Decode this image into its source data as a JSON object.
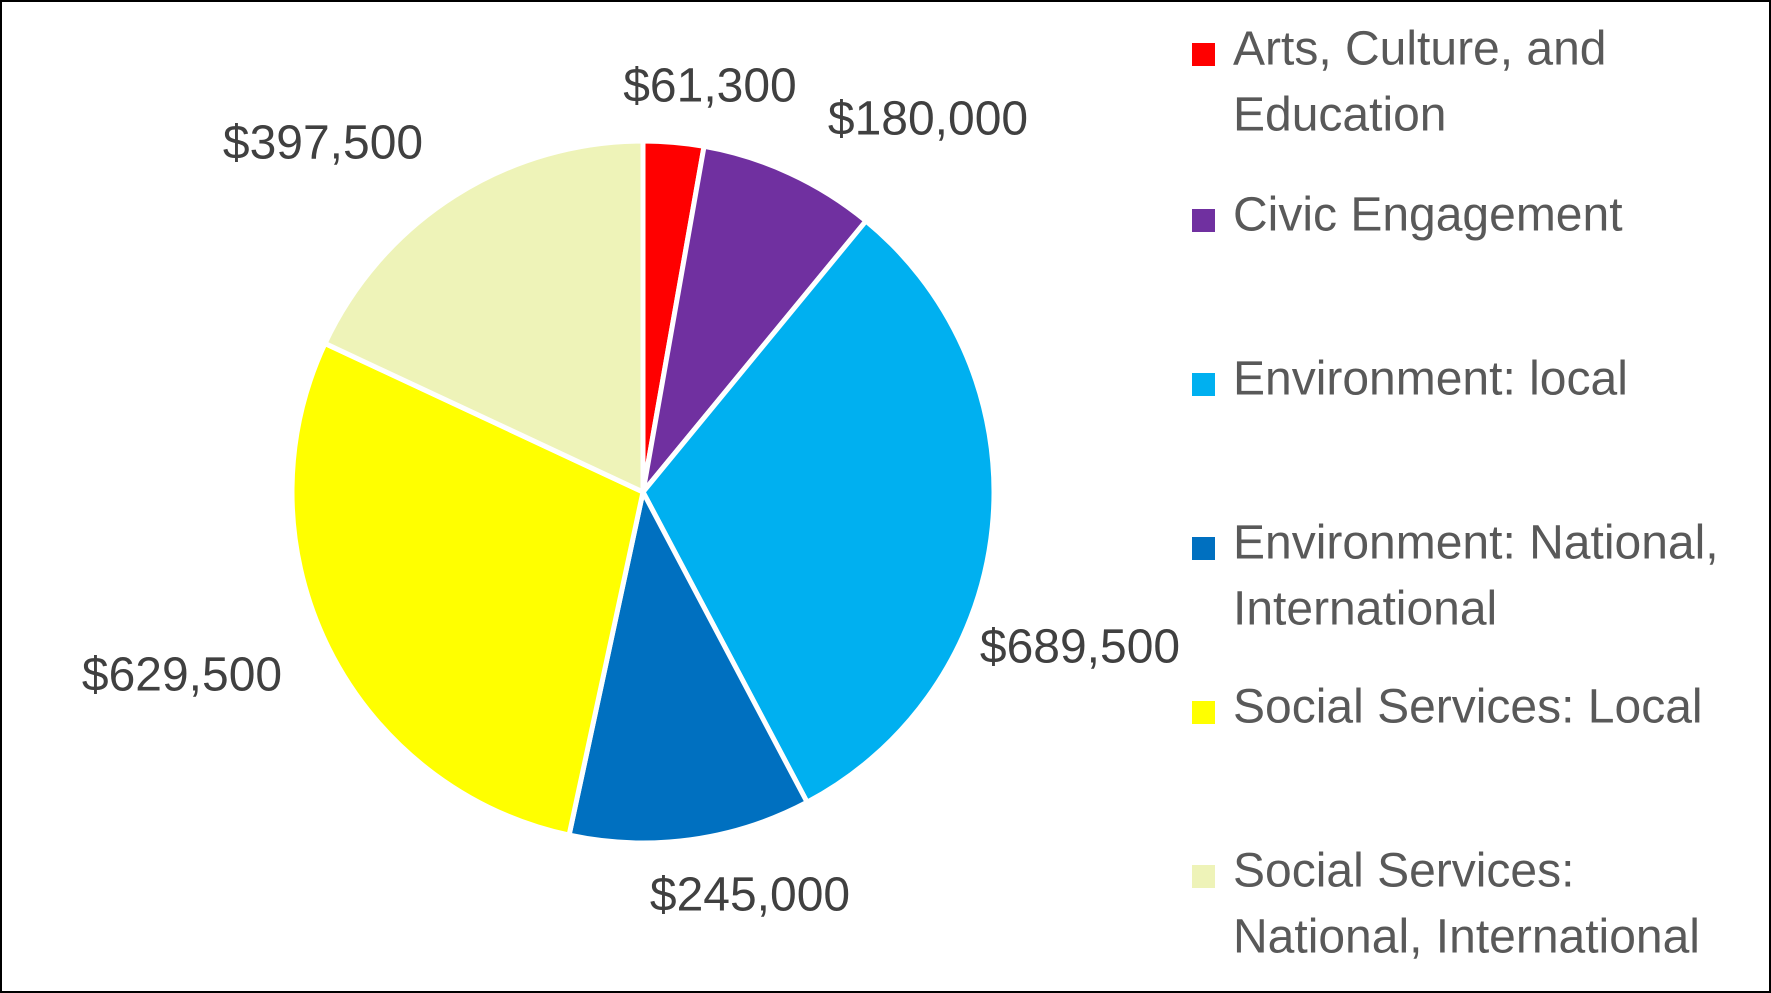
{
  "chart_data": {
    "type": "pie",
    "title": "",
    "legend_position": "right",
    "slices": [
      {
        "label": "Arts, Culture, and Education",
        "legend_lines": [
          "Arts, Culture, and",
          "Education"
        ],
        "value": 61300,
        "display": "$61,300",
        "color": "#FF0000"
      },
      {
        "label": "Civic Engagement",
        "legend_lines": [
          "Civic Engagement"
        ],
        "value": 180000,
        "display": "$180,000",
        "color": "#7030A0"
      },
      {
        "label": "Environment: local",
        "legend_lines": [
          "Environment: local"
        ],
        "value": 689500,
        "display": "$689,500",
        "color": "#00B0F0"
      },
      {
        "label": "Environment: National, International",
        "legend_lines": [
          "Environment: National,",
          "International"
        ],
        "value": 245000,
        "display": "$245,000",
        "color": "#0070C0"
      },
      {
        "label": "Social Services: Local",
        "legend_lines": [
          "Social Services: Local"
        ],
        "value": 629500,
        "display": "$629,500",
        "color": "#FFFF00"
      },
      {
        "label": "Social Services: National, International",
        "legend_lines": [
          "Social Services:",
          "National, International"
        ],
        "value": 397500,
        "display": "$397,500",
        "color": "#EEF3B8"
      }
    ]
  }
}
